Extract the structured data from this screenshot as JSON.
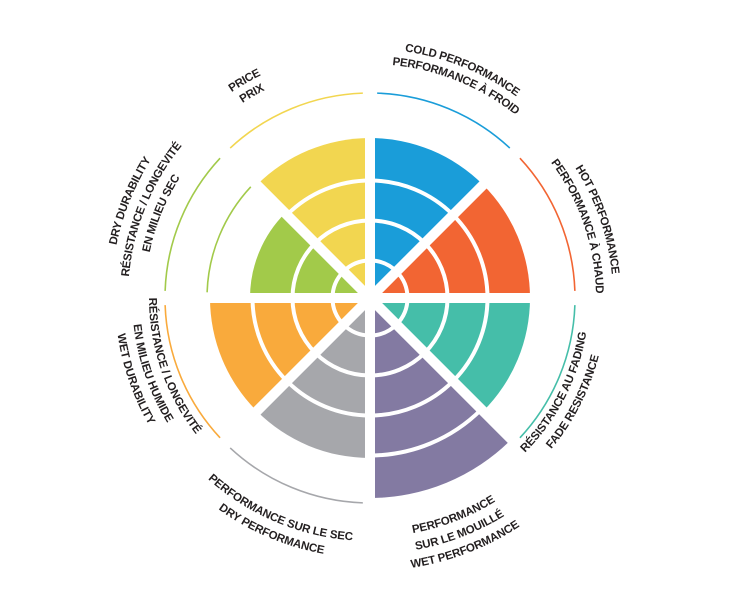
{
  "chart_data": {
    "type": "polar-bar",
    "max_rings": 5,
    "grid": false,
    "legend": "none",
    "categories": [
      {
        "label_lines": [
          "COLD PERFORMANCE",
          "PERFORMANCE À FROID"
        ],
        "value": 4,
        "color": "#1a9dd9",
        "outer_arcs": 1
      },
      {
        "label_lines": [
          "HOT PERFORMANCE",
          "PERFORMANCE À CHAUD"
        ],
        "value": 4,
        "color": "#f26533",
        "outer_arcs": 1
      },
      {
        "label_lines": [
          "RÉSISTANCE AU FADING",
          "FADE RESISTANCE"
        ],
        "value": 4,
        "color": "#45bea9",
        "outer_arcs": 1
      },
      {
        "label_lines": [
          "PERFORMANCE",
          "SUR LE MOUILLÉ",
          "WET PERFORMANCE"
        ],
        "value": 5,
        "color": "#837aa2",
        "outer_arcs": 0
      },
      {
        "label_lines": [
          "PERFORMANCE SUR LE SEC",
          "DRY PERFORMANCE"
        ],
        "value": 4,
        "color": "#a6a7ab",
        "outer_arcs": 1
      },
      {
        "label_lines": [
          "RÉSISTANCE / LONGEVITÉ",
          "EN MILIEU HUMIDE",
          "WET DURABILITY"
        ],
        "value": 4,
        "color": "#f9aa3c",
        "outer_arcs": 1
      },
      {
        "label_lines": [
          "DRY DURABILITY",
          "RÉSISTANCE / LONGEVITÉ",
          "EN MILIEU SEC"
        ],
        "value": 3,
        "color": "#a2ca4a",
        "outer_arcs": 2
      },
      {
        "label_lines": [
          "PRICE",
          "PRIX"
        ],
        "value": 4,
        "color": "#f2d650",
        "outer_arcs": 1
      }
    ]
  }
}
